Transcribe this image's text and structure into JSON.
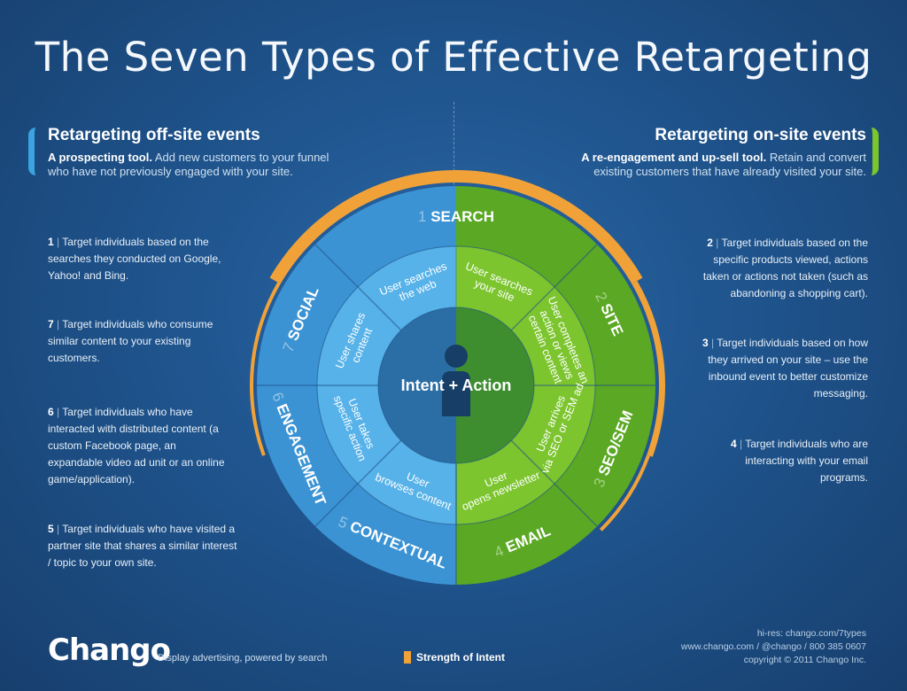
{
  "title": "The Seven Types of Effective Retargeting",
  "offsite": {
    "heading": "Retargeting off-site events",
    "lead": "A prospecting tool.",
    "body": "Add new customers to your funnel who have not previously engaged with your site."
  },
  "onsite": {
    "heading": "Retargeting on-site events",
    "lead": "A re-engagement and up-sell tool.",
    "body": "Retain and convert existing customers that have already visited your site."
  },
  "notes": [
    {
      "num": "1",
      "text": "Target individuals based on the searches they conducted on Google, Yahoo! and Bing."
    },
    {
      "num": "7",
      "text": "Target individuals who consume similar content to your existing customers."
    },
    {
      "num": "6",
      "text": "Target individuals who have interacted with distributed content (a custom Facebook page, an expandable video ad unit or an online game/application)."
    },
    {
      "num": "5",
      "text": "Target individuals who have visited a partner site that shares a similar interest / topic to your own site."
    },
    {
      "num": "2",
      "text": "Target individuals based on the specific products viewed, actions taken or actions not taken (such as abandoning a shopping cart)."
    },
    {
      "num": "3",
      "text": "Target individuals based on how they arrived on your site – use the inbound event to better customize messaging."
    },
    {
      "num": "4",
      "text": "Target individuals who are interacting with your email programs."
    }
  ],
  "wheel": {
    "center": "Intent + Action",
    "segments": [
      {
        "num": "1",
        "label": "SEARCH",
        "inner": [
          "User searches",
          "the web"
        ]
      },
      {
        "num": "1",
        "label": "",
        "inner": [
          "User searches",
          "your site"
        ]
      },
      {
        "num": "2",
        "label": "SITE",
        "inner": [
          "User completes an",
          "action or views",
          "certain content"
        ]
      },
      {
        "num": "3",
        "label": "SEO/SEM",
        "inner": [
          "User arrives",
          "via SEO or SEM ad"
        ]
      },
      {
        "num": "4",
        "label": "EMAIL",
        "inner": [
          "User",
          "opens newsletter"
        ]
      },
      {
        "num": "5",
        "label": "CONTEXTUAL",
        "inner": [
          "User",
          "browses content"
        ]
      },
      {
        "num": "6",
        "label": "ENGAGEMENT",
        "inner": [
          "User takes",
          "specific action"
        ]
      },
      {
        "num": "7",
        "label": "SOCIAL",
        "inner": [
          "User shares",
          "content"
        ]
      }
    ],
    "colors": {
      "blue_outer": "#3b93d3",
      "blue_inner": "#56b2e8",
      "green_outer": "#5aa824",
      "green_inner": "#7cc52f",
      "center_blue": "#2a6ea5",
      "center_green": "#3e8e2f",
      "orange": "#f0a239"
    }
  },
  "footer": {
    "logo": "Chango",
    "tagline": "Display advertising, powered by search",
    "legend": "Strength of Intent",
    "hires": "hi-res: chango.com/7types",
    "contact": "www.chango.com  /  @chango  /  800 385 0607",
    "copyright": "copyright © 2011 Chango Inc."
  }
}
